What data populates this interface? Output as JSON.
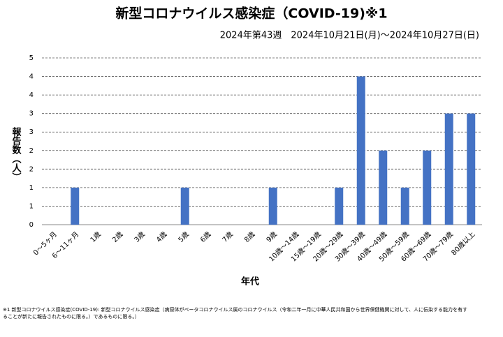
{
  "chart_data": {
    "type": "bar",
    "title": "新型コロナウイルス感染症（COVID-19)※1",
    "subtitle": "2024年第43週　2024年10月21日(月)～2024年10月27日(日)",
    "y_label": "報告数（人）",
    "x_label": "年代",
    "footnote": [
      "※1 新型コロナウイルス感染症(COVID-19): 新型コロナウイルス感染症（病原体がベータコロナウイルス属のコロナウイルス（令和二年一月に中華人民共和国から世界保健機関に対して、人に伝染する能力を有す",
      "ることが新たに報告されたものに限る。）であるものに限る。）"
    ],
    "categories": [
      "0～5ヶ月",
      "6～11ヶ月",
      "1歳",
      "2歳",
      "3歳",
      "4歳",
      "5歳",
      "6歳",
      "7歳",
      "8歳",
      "9歳",
      "10歳～14歳",
      "15歳～19歳",
      "20歳～29歳",
      "30歳～39歳",
      "40歳～49歳",
      "50歳～59歳",
      "60歳～69歳",
      "70歳～79歳",
      "80歳以上"
    ],
    "values": [
      0,
      1,
      0,
      0,
      0,
      0,
      1,
      0,
      0,
      0,
      1,
      0,
      0,
      1,
      4,
      2,
      1,
      2,
      3,
      3
    ],
    "color": "#4472c4",
    "ylim": [
      0,
      4.5
    ],
    "yticks": [
      0,
      {
        "value": 0.5,
        "label": "1"
      },
      1,
      {
        "value": 1.5,
        "label": "2"
      },
      2,
      {
        "value": 2.5,
        "label": "3"
      },
      3,
      {
        "value": 3.5,
        "label": "4"
      },
      4,
      {
        "value": 4.5,
        "label": "5"
      }
    ],
    "grid": true
  }
}
